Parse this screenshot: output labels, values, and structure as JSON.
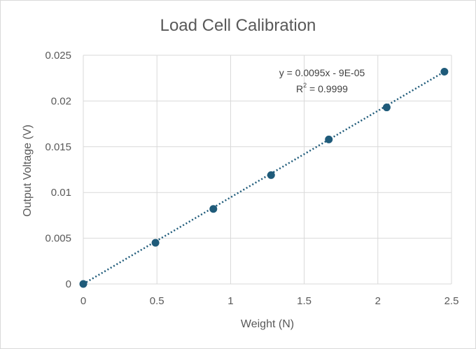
{
  "chart_data": {
    "type": "scatter",
    "title": "Load Cell Calibration",
    "xlabel": "Weight (N)",
    "ylabel": "Output Voltage (V)",
    "xlim": [
      0,
      2.5
    ],
    "ylim": [
      0,
      0.025
    ],
    "x_ticks": [
      "0",
      "0.5",
      "1",
      "1.5",
      "2",
      "2.5"
    ],
    "y_ticks": [
      "0",
      "0.005",
      "0.01",
      "0.015",
      "0.02",
      "0.025"
    ],
    "grid": true,
    "marker_color": "#1f5b7a",
    "series": [
      {
        "x": [
          0,
          0.49,
          0.883,
          1.275,
          1.667,
          2.06,
          2.452
        ],
        "y": [
          0,
          0.0045,
          0.0082,
          0.0119,
          0.0158,
          0.0193,
          0.0232
        ]
      }
    ],
    "trendline": {
      "type": "linear",
      "slope": 0.0095,
      "intercept": -9e-05,
      "style": "dotted",
      "equation_label": "y = 0.0095x - 9E-05",
      "r2_label_prefix": "R",
      "r2_label_sup": "2",
      "r2_label_value": " = 0.9999"
    }
  }
}
